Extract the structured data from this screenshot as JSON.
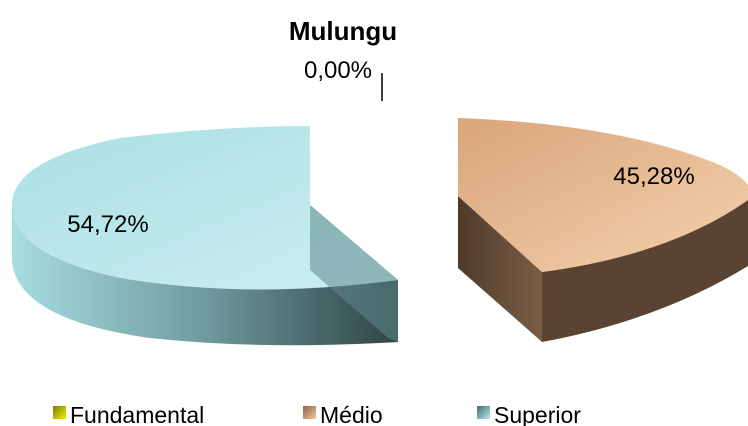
{
  "chart_data": {
    "type": "pie",
    "style": "3d-exploded",
    "title": "Mulungu",
    "slices": [
      {
        "label": "Fundamental",
        "value": 0.0,
        "display": "0,00%",
        "color": "#d4d400"
      },
      {
        "label": "Médio",
        "value": 45.28,
        "display": "45,28%",
        "color": "#dcaa7a"
      },
      {
        "label": "Superior",
        "value": 54.72,
        "display": "54,72%",
        "color": "#9fd6da"
      }
    ],
    "legend_position": "bottom"
  }
}
